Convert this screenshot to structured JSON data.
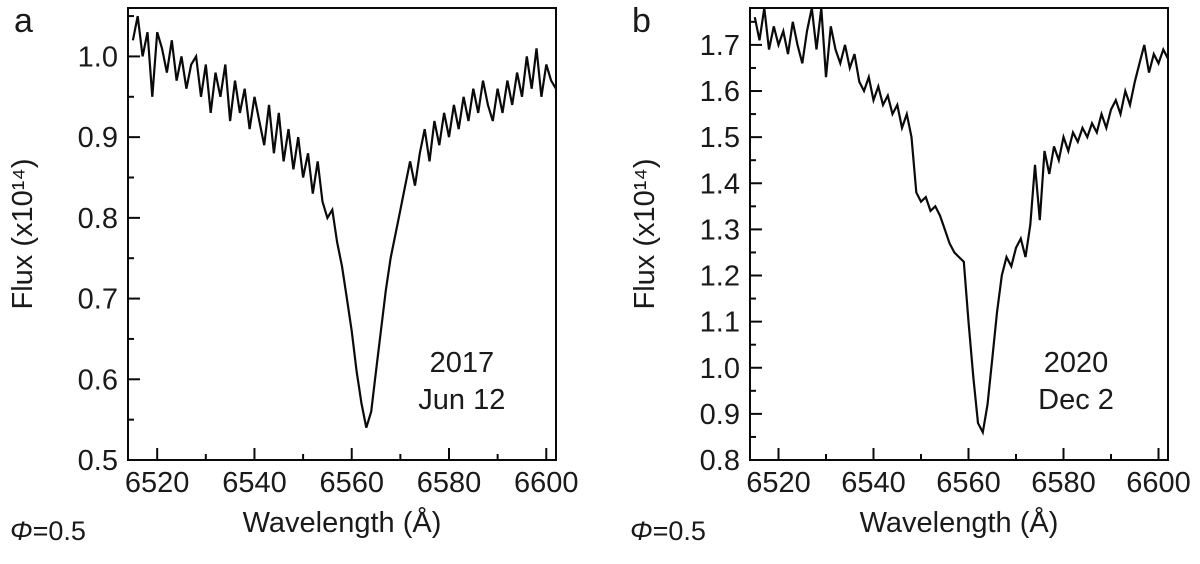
{
  "figure_colors": {
    "line": "#0a0a0a",
    "text": "#1a1a1a",
    "frame": "#0a0a0a",
    "background": "#ffffff"
  },
  "chart_data": [
    {
      "type": "line",
      "panel_letter": "a",
      "annotation_lines": [
        "2017",
        "Jun 12"
      ],
      "xlabel": "Wavelength (Å)",
      "ylabel": "Flux (x10¹⁴)",
      "phi_symbol": "Φ",
      "phi_value": "=0.5",
      "xlim": [
        6514,
        6602
      ],
      "ylim": [
        0.5,
        1.06
      ],
      "xticks": [
        6520,
        6540,
        6560,
        6580,
        6600
      ],
      "yticks": [
        0.5,
        0.6,
        0.7,
        0.8,
        0.9,
        1.0
      ],
      "x_minor": [
        6530,
        6550,
        6570,
        6590
      ],
      "y_minor_step": 0.05,
      "line_color": "#0a0a0a",
      "x": [
        6515,
        6516,
        6517,
        6518,
        6519,
        6520,
        6521,
        6522,
        6523,
        6524,
        6525,
        6526,
        6527,
        6528,
        6529,
        6530,
        6531,
        6532,
        6533,
        6534,
        6535,
        6536,
        6537,
        6538,
        6539,
        6540,
        6541,
        6542,
        6543,
        6544,
        6545,
        6546,
        6547,
        6548,
        6549,
        6550,
        6551,
        6552,
        6553,
        6554,
        6555,
        6556,
        6557,
        6558,
        6559,
        6560,
        6561,
        6562,
        6563,
        6564,
        6565,
        6566,
        6567,
        6568,
        6569,
        6570,
        6571,
        6572,
        6573,
        6574,
        6575,
        6576,
        6577,
        6578,
        6579,
        6580,
        6581,
        6582,
        6583,
        6584,
        6585,
        6586,
        6587,
        6588,
        6589,
        6590,
        6591,
        6592,
        6593,
        6594,
        6595,
        6596,
        6597,
        6598,
        6599,
        6600,
        6601,
        6602
      ],
      "y": [
        1.02,
        1.05,
        1.0,
        1.03,
        0.95,
        1.03,
        1.01,
        0.98,
        1.02,
        0.97,
        1.0,
        0.96,
        0.99,
        1.0,
        0.95,
        0.99,
        0.93,
        0.98,
        0.95,
        0.99,
        0.92,
        0.97,
        0.93,
        0.96,
        0.91,
        0.95,
        0.92,
        0.89,
        0.94,
        0.88,
        0.93,
        0.87,
        0.91,
        0.86,
        0.9,
        0.85,
        0.88,
        0.83,
        0.87,
        0.82,
        0.8,
        0.81,
        0.77,
        0.74,
        0.7,
        0.66,
        0.61,
        0.57,
        0.54,
        0.56,
        0.61,
        0.66,
        0.71,
        0.75,
        0.78,
        0.81,
        0.84,
        0.87,
        0.84,
        0.88,
        0.91,
        0.87,
        0.92,
        0.89,
        0.93,
        0.9,
        0.94,
        0.91,
        0.95,
        0.92,
        0.96,
        0.93,
        0.97,
        0.94,
        0.92,
        0.96,
        0.93,
        0.97,
        0.94,
        0.98,
        0.95,
        1.0,
        0.96,
        1.01,
        0.95,
        0.99,
        0.97,
        0.96
      ]
    },
    {
      "type": "line",
      "panel_letter": "b",
      "annotation_lines": [
        "2020",
        "Dec  2"
      ],
      "xlabel": "Wavelength (Å)",
      "ylabel": "Flux (x10¹⁴)",
      "phi_symbol": "Φ",
      "phi_value": "=0.5",
      "xlim": [
        6514,
        6602
      ],
      "ylim": [
        0.8,
        1.78
      ],
      "xticks": [
        6520,
        6540,
        6560,
        6580,
        6600
      ],
      "yticks": [
        0.8,
        0.9,
        1.0,
        1.1,
        1.2,
        1.3,
        1.4,
        1.5,
        1.6,
        1.7
      ],
      "x_minor": [
        6530,
        6550,
        6570,
        6590
      ],
      "y_minor_step": 0.05,
      "line_color": "#0a0a0a",
      "x": [
        6515,
        6516,
        6517,
        6518,
        6519,
        6520,
        6521,
        6522,
        6523,
        6524,
        6525,
        6526,
        6527,
        6528,
        6529,
        6530,
        6531,
        6532,
        6533,
        6534,
        6535,
        6536,
        6537,
        6538,
        6539,
        6540,
        6541,
        6542,
        6543,
        6544,
        6545,
        6546,
        6547,
        6548,
        6549,
        6550,
        6551,
        6552,
        6553,
        6554,
        6555,
        6556,
        6557,
        6558,
        6559,
        6560,
        6561,
        6562,
        6563,
        6564,
        6565,
        6566,
        6567,
        6568,
        6569,
        6570,
        6571,
        6572,
        6573,
        6574,
        6575,
        6576,
        6577,
        6578,
        6579,
        6580,
        6581,
        6582,
        6583,
        6584,
        6585,
        6586,
        6587,
        6588,
        6589,
        6590,
        6591,
        6592,
        6593,
        6594,
        6595,
        6596,
        6597,
        6598,
        6599,
        6600,
        6601,
        6602
      ],
      "y": [
        1.76,
        1.71,
        1.78,
        1.69,
        1.74,
        1.7,
        1.73,
        1.68,
        1.75,
        1.7,
        1.66,
        1.73,
        1.78,
        1.69,
        1.78,
        1.63,
        1.74,
        1.69,
        1.66,
        1.7,
        1.65,
        1.68,
        1.62,
        1.6,
        1.63,
        1.58,
        1.61,
        1.57,
        1.59,
        1.55,
        1.57,
        1.52,
        1.55,
        1.5,
        1.38,
        1.36,
        1.37,
        1.34,
        1.35,
        1.33,
        1.3,
        1.27,
        1.25,
        1.24,
        1.23,
        1.1,
        0.98,
        0.88,
        0.86,
        0.92,
        1.02,
        1.12,
        1.2,
        1.24,
        1.22,
        1.26,
        1.28,
        1.24,
        1.31,
        1.44,
        1.32,
        1.47,
        1.42,
        1.48,
        1.45,
        1.5,
        1.47,
        1.51,
        1.49,
        1.52,
        1.5,
        1.53,
        1.51,
        1.55,
        1.52,
        1.56,
        1.58,
        1.55,
        1.6,
        1.57,
        1.62,
        1.66,
        1.7,
        1.64,
        1.68,
        1.66,
        1.69,
        1.67
      ]
    }
  ]
}
